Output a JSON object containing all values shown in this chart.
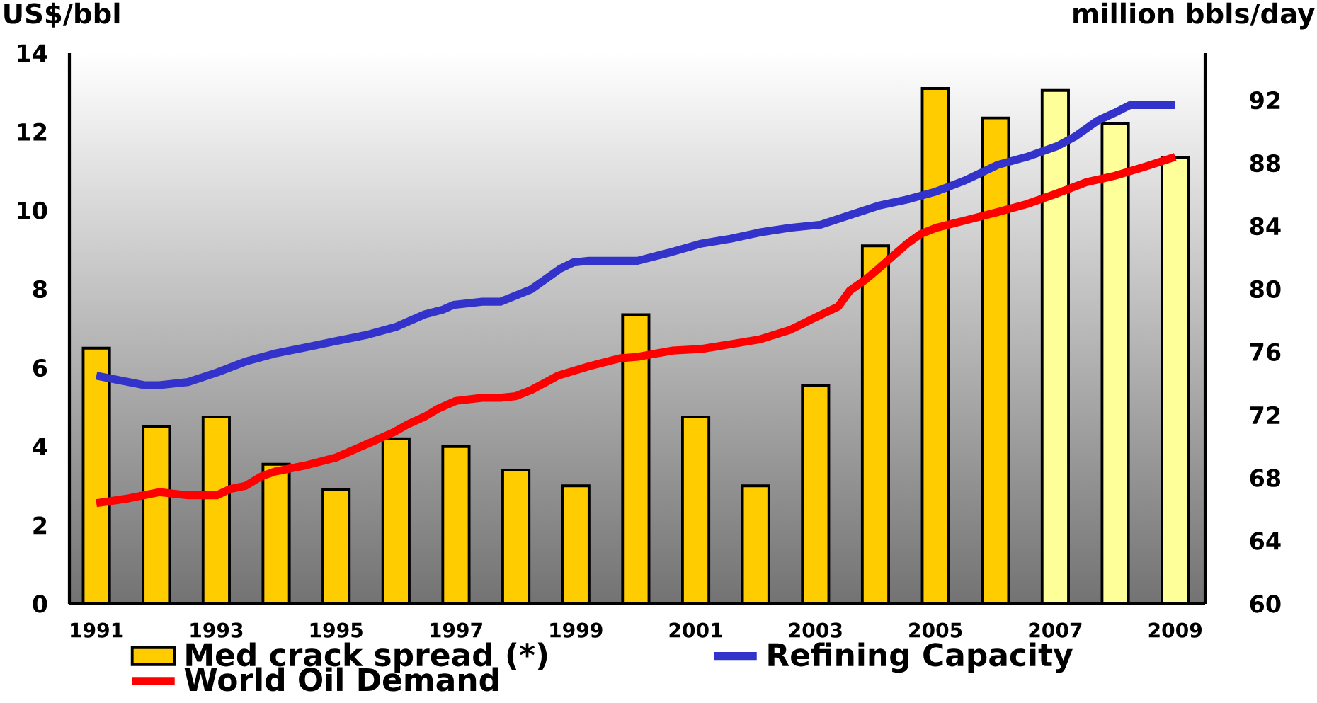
{
  "chart_data": {
    "type": "bar",
    "x": [
      1991,
      1992,
      1993,
      1994,
      1995,
      1996,
      1997,
      1998,
      1999,
      2000,
      2001,
      2002,
      2003,
      2004,
      2005,
      2006,
      2007,
      2008,
      2009
    ],
    "xlim": [
      1990.55,
      2009.5
    ],
    "xticks": [
      1991,
      1993,
      1995,
      1997,
      1999,
      2001,
      2003,
      2005,
      2007,
      2009
    ],
    "ylim": [
      0,
      14
    ],
    "yticks": [
      0,
      2,
      4,
      6,
      8,
      10,
      12,
      14
    ],
    "y2lim": [
      60,
      95
    ],
    "y2ticks": [
      60,
      64,
      68,
      72,
      76,
      80,
      84,
      88,
      92
    ],
    "ylabel": "US$/bbl",
    "y2label": "million bbls/day",
    "legend": "bottom",
    "series": [
      {
        "name": "Med crack spread (*)",
        "type": "bar",
        "color": "#ffcc00",
        "colors": [
          "#ffcc00",
          "#ffcc00",
          "#ffcc00",
          "#ffcc00",
          "#ffcc00",
          "#ffcc00",
          "#ffcc00",
          "#ffcc00",
          "#ffcc00",
          "#ffcc00",
          "#ffcc00",
          "#ffcc00",
          "#ffcc00",
          "#ffcc00",
          "#ffcc00",
          "#ffcc00",
          "#ffff99",
          "#ffff99",
          "#ffff99"
        ],
        "values": [
          6.5,
          4.5,
          4.75,
          3.55,
          2.9,
          4.2,
          4.0,
          3.4,
          3.0,
          7.35,
          4.75,
          3.0,
          5.55,
          9.1,
          13.1,
          12.35,
          13.05,
          12.2,
          11.35
        ]
      },
      {
        "name": "Refining Capacity",
        "type": "line",
        "axis": "y2",
        "color": "#3333cc",
        "x": [
          1991.0,
          1991.53,
          1991.8,
          1992.05,
          1992.53,
          1993.01,
          1993.49,
          1993.97,
          1994.49,
          1995.0,
          1995.52,
          1996.0,
          1996.48,
          1996.78,
          1996.96,
          1997.44,
          1997.74,
          1998.0,
          1998.26,
          1998.74,
          1998.96,
          1999.22,
          2000.03,
          2000.54,
          2001.1,
          2001.58,
          2002.06,
          2002.57,
          2003.09,
          2003.57,
          2004.05,
          2004.53,
          2005.01,
          2005.49,
          2006.04,
          2006.52,
          2007.04,
          2007.33,
          2007.7,
          2007.99,
          2008.25,
          2008.47,
          2009.0
        ],
        "values": [
          74.5,
          74.1,
          73.9,
          73.9,
          74.1,
          74.7,
          75.4,
          75.9,
          76.3,
          76.7,
          77.1,
          77.6,
          78.4,
          78.7,
          79.0,
          79.2,
          79.2,
          79.6,
          80.0,
          81.3,
          81.7,
          81.8,
          81.8,
          82.3,
          82.9,
          83.2,
          83.6,
          83.9,
          84.1,
          84.7,
          85.3,
          85.7,
          86.2,
          86.9,
          87.9,
          88.4,
          89.1,
          89.7,
          90.7,
          91.2,
          91.7,
          91.7,
          91.7
        ]
      },
      {
        "name": "World Oil Demand",
        "type": "line",
        "axis": "y2",
        "color": "#ff0000",
        "x": [
          1991.0,
          1991.53,
          1992.05,
          1992.53,
          1993.01,
          1993.23,
          1993.49,
          1993.75,
          1993.97,
          1994.49,
          1995.0,
          1995.48,
          1995.96,
          1996.19,
          1996.48,
          1996.7,
          1997.0,
          1997.44,
          1997.74,
          1998.0,
          1998.26,
          1998.7,
          1999.22,
          1999.73,
          2000.03,
          2000.62,
          2001.1,
          2001.58,
          2002.06,
          2002.57,
          2003.05,
          2003.38,
          2003.57,
          2003.83,
          2004.05,
          2004.53,
          2004.75,
          2005.01,
          2005.53,
          2006.04,
          2006.52,
          2007.04,
          2007.52,
          2007.99,
          2008.51,
          2009.0
        ],
        "values": [
          66.4,
          66.7,
          67.1,
          66.9,
          66.9,
          67.3,
          67.5,
          68.1,
          68.4,
          68.8,
          69.3,
          70.1,
          70.9,
          71.4,
          71.9,
          72.4,
          72.9,
          73.1,
          73.1,
          73.2,
          73.6,
          74.5,
          75.1,
          75.6,
          75.7,
          76.1,
          76.2,
          76.5,
          76.8,
          77.4,
          78.3,
          78.9,
          79.9,
          80.6,
          81.3,
          82.9,
          83.5,
          83.9,
          84.4,
          84.9,
          85.4,
          86.1,
          86.8,
          87.2,
          87.8,
          88.4
        ]
      }
    ]
  }
}
